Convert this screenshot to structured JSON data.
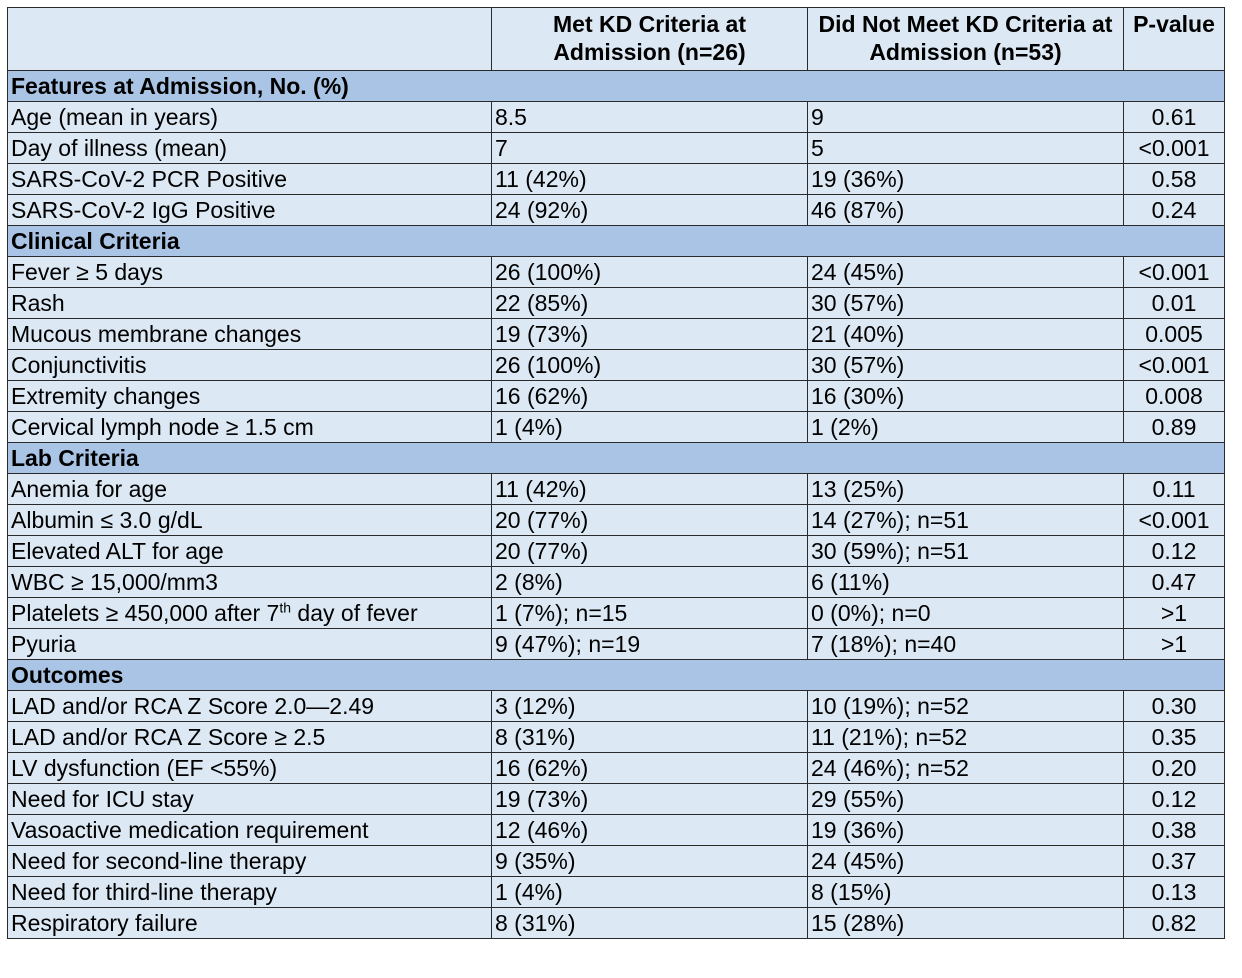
{
  "header": {
    "col1": "",
    "col2": "Met KD Criteria at Admission (n=26)",
    "col3": "Did Not Meet KD Criteria at Admission (n=53)",
    "col4": "P-value"
  },
  "sections": [
    {
      "title": "Features at Admission, No. (%)",
      "rows": [
        {
          "label": "Age (mean in years)",
          "met": "8.5",
          "not_met": "9",
          "p": "0.61"
        },
        {
          "label": "Day of illness (mean)",
          "met": "7",
          "not_met": "5",
          "p": "<0.001"
        },
        {
          "label": "SARS-CoV-2 PCR Positive",
          "met": "11 (42%)",
          "not_met": "19 (36%)",
          "p": "0.58"
        },
        {
          "label": "SARS-CoV-2 IgG Positive",
          "met": "24 (92%)",
          "not_met": "46 (87%)",
          "p": "0.24"
        }
      ]
    },
    {
      "title": "Clinical Criteria",
      "rows": [
        {
          "label": "Fever ≥ 5 days",
          "met": "26 (100%)",
          "not_met": "24 (45%)",
          "p": "<0.001"
        },
        {
          "label": "Rash",
          "met": "22 (85%)",
          "not_met": "30 (57%)",
          "p": "0.01"
        },
        {
          "label": "Mucous membrane changes",
          "met": "19 (73%)",
          "not_met": "21 (40%)",
          "p": "0.005"
        },
        {
          "label": "Conjunctivitis",
          "met": "26 (100%)",
          "not_met": "30 (57%)",
          "p": "<0.001"
        },
        {
          "label": "Extremity changes",
          "met": "16 (62%)",
          "not_met": "16 (30%)",
          "p": "0.008"
        },
        {
          "label": "Cervical lymph node ≥ 1.5 cm",
          "met": "1 (4%)",
          "not_met": "1 (2%)",
          "p": "0.89"
        }
      ]
    },
    {
      "title": "Lab Criteria",
      "rows": [
        {
          "label": "Anemia for age",
          "met": "11 (42%)",
          "not_met": "13 (25%)",
          "p": "0.11"
        },
        {
          "label": "Albumin ≤ 3.0 g/dL",
          "met": "20 (77%)",
          "not_met": "14 (27%); n=51",
          "p": "<0.001"
        },
        {
          "label": "Elevated ALT for age",
          "met": "20 (77%)",
          "not_met": "30 (59%); n=51",
          "p": "0.12"
        },
        {
          "label": "WBC ≥ 15,000/mm3",
          "met": "2 (8%)",
          "not_met": "6 (11%)",
          "p": "0.47"
        },
        {
          "label": "Platelets ≥ 450,000 after 7",
          "label_sup": "th",
          "label_after": " day of fever",
          "met": "1 (7%); n=15",
          "not_met": "0 (0%); n=0",
          "p": ">1"
        },
        {
          "label": "Pyuria",
          "met": "9 (47%); n=19",
          "not_met": "7 (18%); n=40",
          "p": ">1"
        }
      ]
    },
    {
      "title": "Outcomes",
      "rows": [
        {
          "label": "LAD and/or RCA Z Score 2.0—2.49",
          "met": "3 (12%)",
          "not_met": "10 (19%); n=52",
          "p": "0.30"
        },
        {
          "label": "LAD and/or RCA Z Score ≥ 2.5",
          "met": "8 (31%)",
          "not_met": "11 (21%); n=52",
          "p": "0.35"
        },
        {
          "label": "LV dysfunction (EF <55%)",
          "met": "16 (62%)",
          "not_met": "24 (46%); n=52",
          "p": "0.20"
        },
        {
          "label": "Need for ICU stay",
          "met": "19 (73%)",
          "not_met": "29 (55%)",
          "p": "0.12"
        },
        {
          "label": "Vasoactive medication requirement",
          "met": "12 (46%)",
          "not_met": "19 (36%)",
          "p": "0.38"
        },
        {
          "label": "Need for second-line therapy",
          "met": "9 (35%)",
          "not_met": "24 (45%)",
          "p": "0.37"
        },
        {
          "label": "Need for third-line therapy",
          "met": "1 (4%)",
          "not_met": "8 (15%)",
          "p": "0.13"
        },
        {
          "label": "Respiratory failure",
          "met": "8 (31%)",
          "not_met": "15 (28%)",
          "p": "0.82"
        }
      ]
    }
  ],
  "colors": {
    "cell_bg": "#dce8f4",
    "section_bg": "#a9c4e4",
    "border": "#2a2a2a"
  }
}
